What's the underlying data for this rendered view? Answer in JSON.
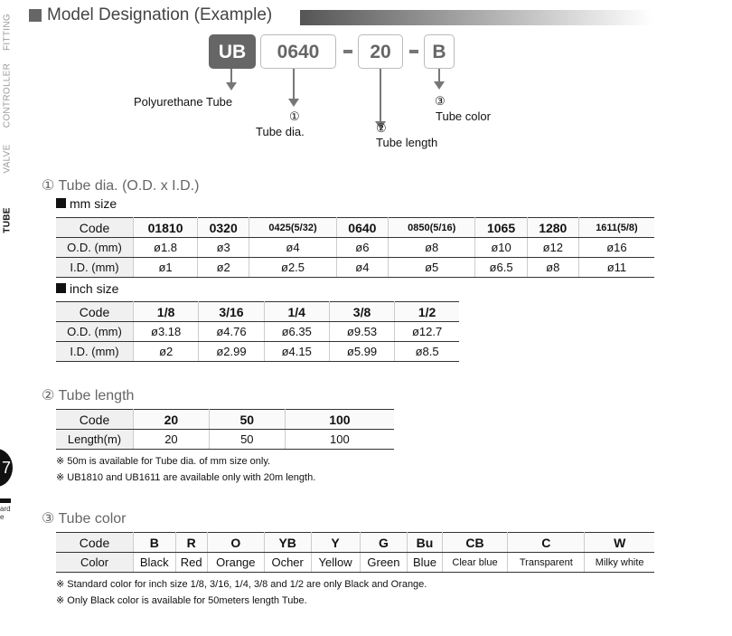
{
  "side_nav": [
    "FITTING",
    "CONTROLLER",
    "VALVE",
    "TUBE"
  ],
  "side_active": "TUBE",
  "page_number": "7",
  "page_label": [
    "ard",
    "e"
  ],
  "title": "Model Designation (Example)",
  "designation": {
    "parts": [
      "UB",
      "0640",
      "20",
      "B"
    ],
    "separator": "-",
    "labels": {
      "prefix": "Polyurethane Tube",
      "dia_num": "①",
      "dia": "Tube dia.",
      "len_num": "②",
      "len": "Tube length",
      "color_num": "③",
      "color": "Tube color"
    }
  },
  "sec1": "① Tube dia. (O.D. x I.D.)",
  "mm_title": "mm size",
  "mm_table": [
    [
      "Code",
      "01810",
      "0320",
      "0425(5/32)",
      "0640",
      "0850(5/16)",
      "1065",
      "1280",
      "1611(5/8)"
    ],
    [
      "O.D. (mm)",
      "ø1.8",
      "ø3",
      "ø4",
      "ø6",
      "ø8",
      "ø10",
      "ø12",
      "ø16"
    ],
    [
      "I.D. (mm)",
      "ø1",
      "ø2",
      "ø2.5",
      "ø4",
      "ø5",
      "ø6.5",
      "ø8",
      "ø11"
    ]
  ],
  "inch_title": "inch size",
  "inch_table": [
    [
      "Code",
      "1/8",
      "3/16",
      "1/4",
      "3/8",
      "1/2"
    ],
    [
      "O.D. (mm)",
      "ø3.18",
      "ø4.76",
      "ø6.35",
      "ø9.53",
      "ø12.7"
    ],
    [
      "I.D. (mm)",
      "ø2",
      "ø2.99",
      "ø4.15",
      "ø5.99",
      "ø8.5"
    ]
  ],
  "sec2": "② Tube length",
  "len_table": [
    [
      "Code",
      "20",
      "50",
      "100"
    ],
    [
      "Length(m)",
      "20",
      "50",
      "100"
    ]
  ],
  "len_notes": [
    "※ 50m is available for Tube dia. of mm size only.",
    "※ UB1810 and UB1611 are available only with 20m length."
  ],
  "sec3": "③ Tube color",
  "color_table": [
    [
      "Code",
      "B",
      "R",
      "O",
      "YB",
      "Y",
      "G",
      "Bu",
      "CB",
      "C",
      "W"
    ],
    [
      "Color",
      "Black",
      "Red",
      "Orange",
      "Ocher",
      "Yellow",
      "Green",
      "Blue",
      "Clear blue",
      "Transparent",
      "Milky white"
    ]
  ],
  "color_notes": [
    "※ Standard color for inch size 1/8, 3/16, 1/4, 3/8 and 1/2 are only Black and Orange.",
    "※ Only Black color is available for 50meters length Tube."
  ]
}
